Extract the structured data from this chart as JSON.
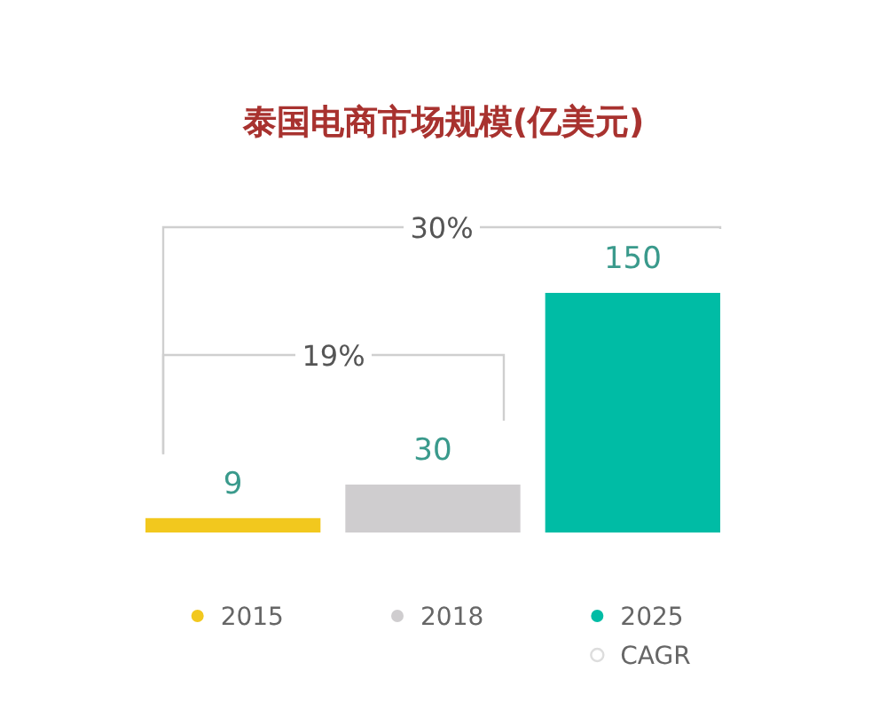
{
  "chart_data": {
    "type": "bar",
    "title": "泰国电商市场规模(亿美元)",
    "data_labels": true,
    "categories": [
      "2015",
      "2018",
      "2025"
    ],
    "values": [
      9,
      30,
      150
    ],
    "colors": [
      "#f2c81e",
      "#cfcdcf",
      "#00bca5"
    ],
    "annotations": [
      "30%",
      "19%",
      "CAGR"
    ]
  }
}
